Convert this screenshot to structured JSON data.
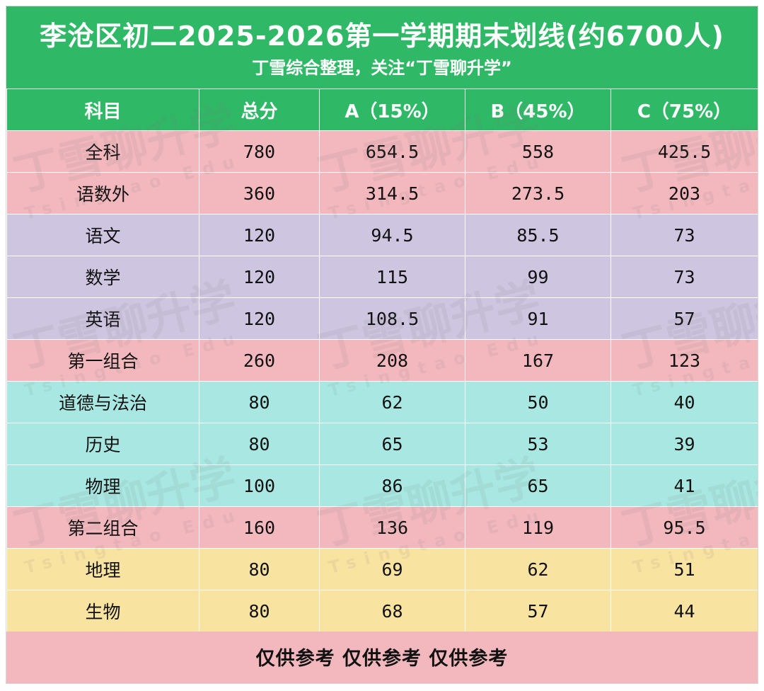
{
  "header": {
    "title": "李沧区初二2025-2026第一学期期末划线(约6700人)",
    "subtitle": "丁雪综合整理，关注“丁雪聊升学”"
  },
  "table": {
    "columns": [
      "科目",
      "总分",
      "A（15%）",
      "B（45%）",
      "C（75%）"
    ],
    "rows": [
      {
        "cells": [
          "全科",
          "780",
          "654.5",
          "558",
          "425.5"
        ],
        "color": "#f3b8be"
      },
      {
        "cells": [
          "语数外",
          "360",
          "314.5",
          "273.5",
          "203"
        ],
        "color": "#f3b8be"
      },
      {
        "cells": [
          "语文",
          "120",
          "94.5",
          "85.5",
          "73"
        ],
        "color": "#cec5e1"
      },
      {
        "cells": [
          "数学",
          "120",
          "115",
          "99",
          "73"
        ],
        "color": "#cec5e1"
      },
      {
        "cells": [
          "英语",
          "120",
          "108.5",
          "91",
          "57"
        ],
        "color": "#cec5e1"
      },
      {
        "cells": [
          "第一组合",
          "260",
          "208",
          "167",
          "123"
        ],
        "color": "#f3b8be"
      },
      {
        "cells": [
          "道德与法治",
          "80",
          "62",
          "50",
          "40"
        ],
        "color": "#a9e8e2"
      },
      {
        "cells": [
          "历史",
          "80",
          "65",
          "53",
          "39"
        ],
        "color": "#a9e8e2"
      },
      {
        "cells": [
          "物理",
          "100",
          "86",
          "65",
          "41"
        ],
        "color": "#a9e8e2"
      },
      {
        "cells": [
          "第二组合",
          "160",
          "136",
          "119",
          "95.5"
        ],
        "color": "#f3b8be"
      },
      {
        "cells": [
          "地理",
          "80",
          "69",
          "62",
          "51"
        ],
        "color": "#f9e3a1"
      },
      {
        "cells": [
          "生物",
          "80",
          "68",
          "57",
          "44"
        ],
        "color": "#f9e3a1"
      }
    ]
  },
  "footer": {
    "text": "仅供参考 仅供参考 仅供参考"
  },
  "watermark": {
    "brand": "丁雪聊升学",
    "sub": "Tsingtao Edu"
  },
  "colors": {
    "header_green": "#2fb866",
    "pink": "#f3b8be",
    "lavender": "#cec5e1",
    "teal": "#a9e8e2",
    "yellow": "#f9e3a1"
  }
}
